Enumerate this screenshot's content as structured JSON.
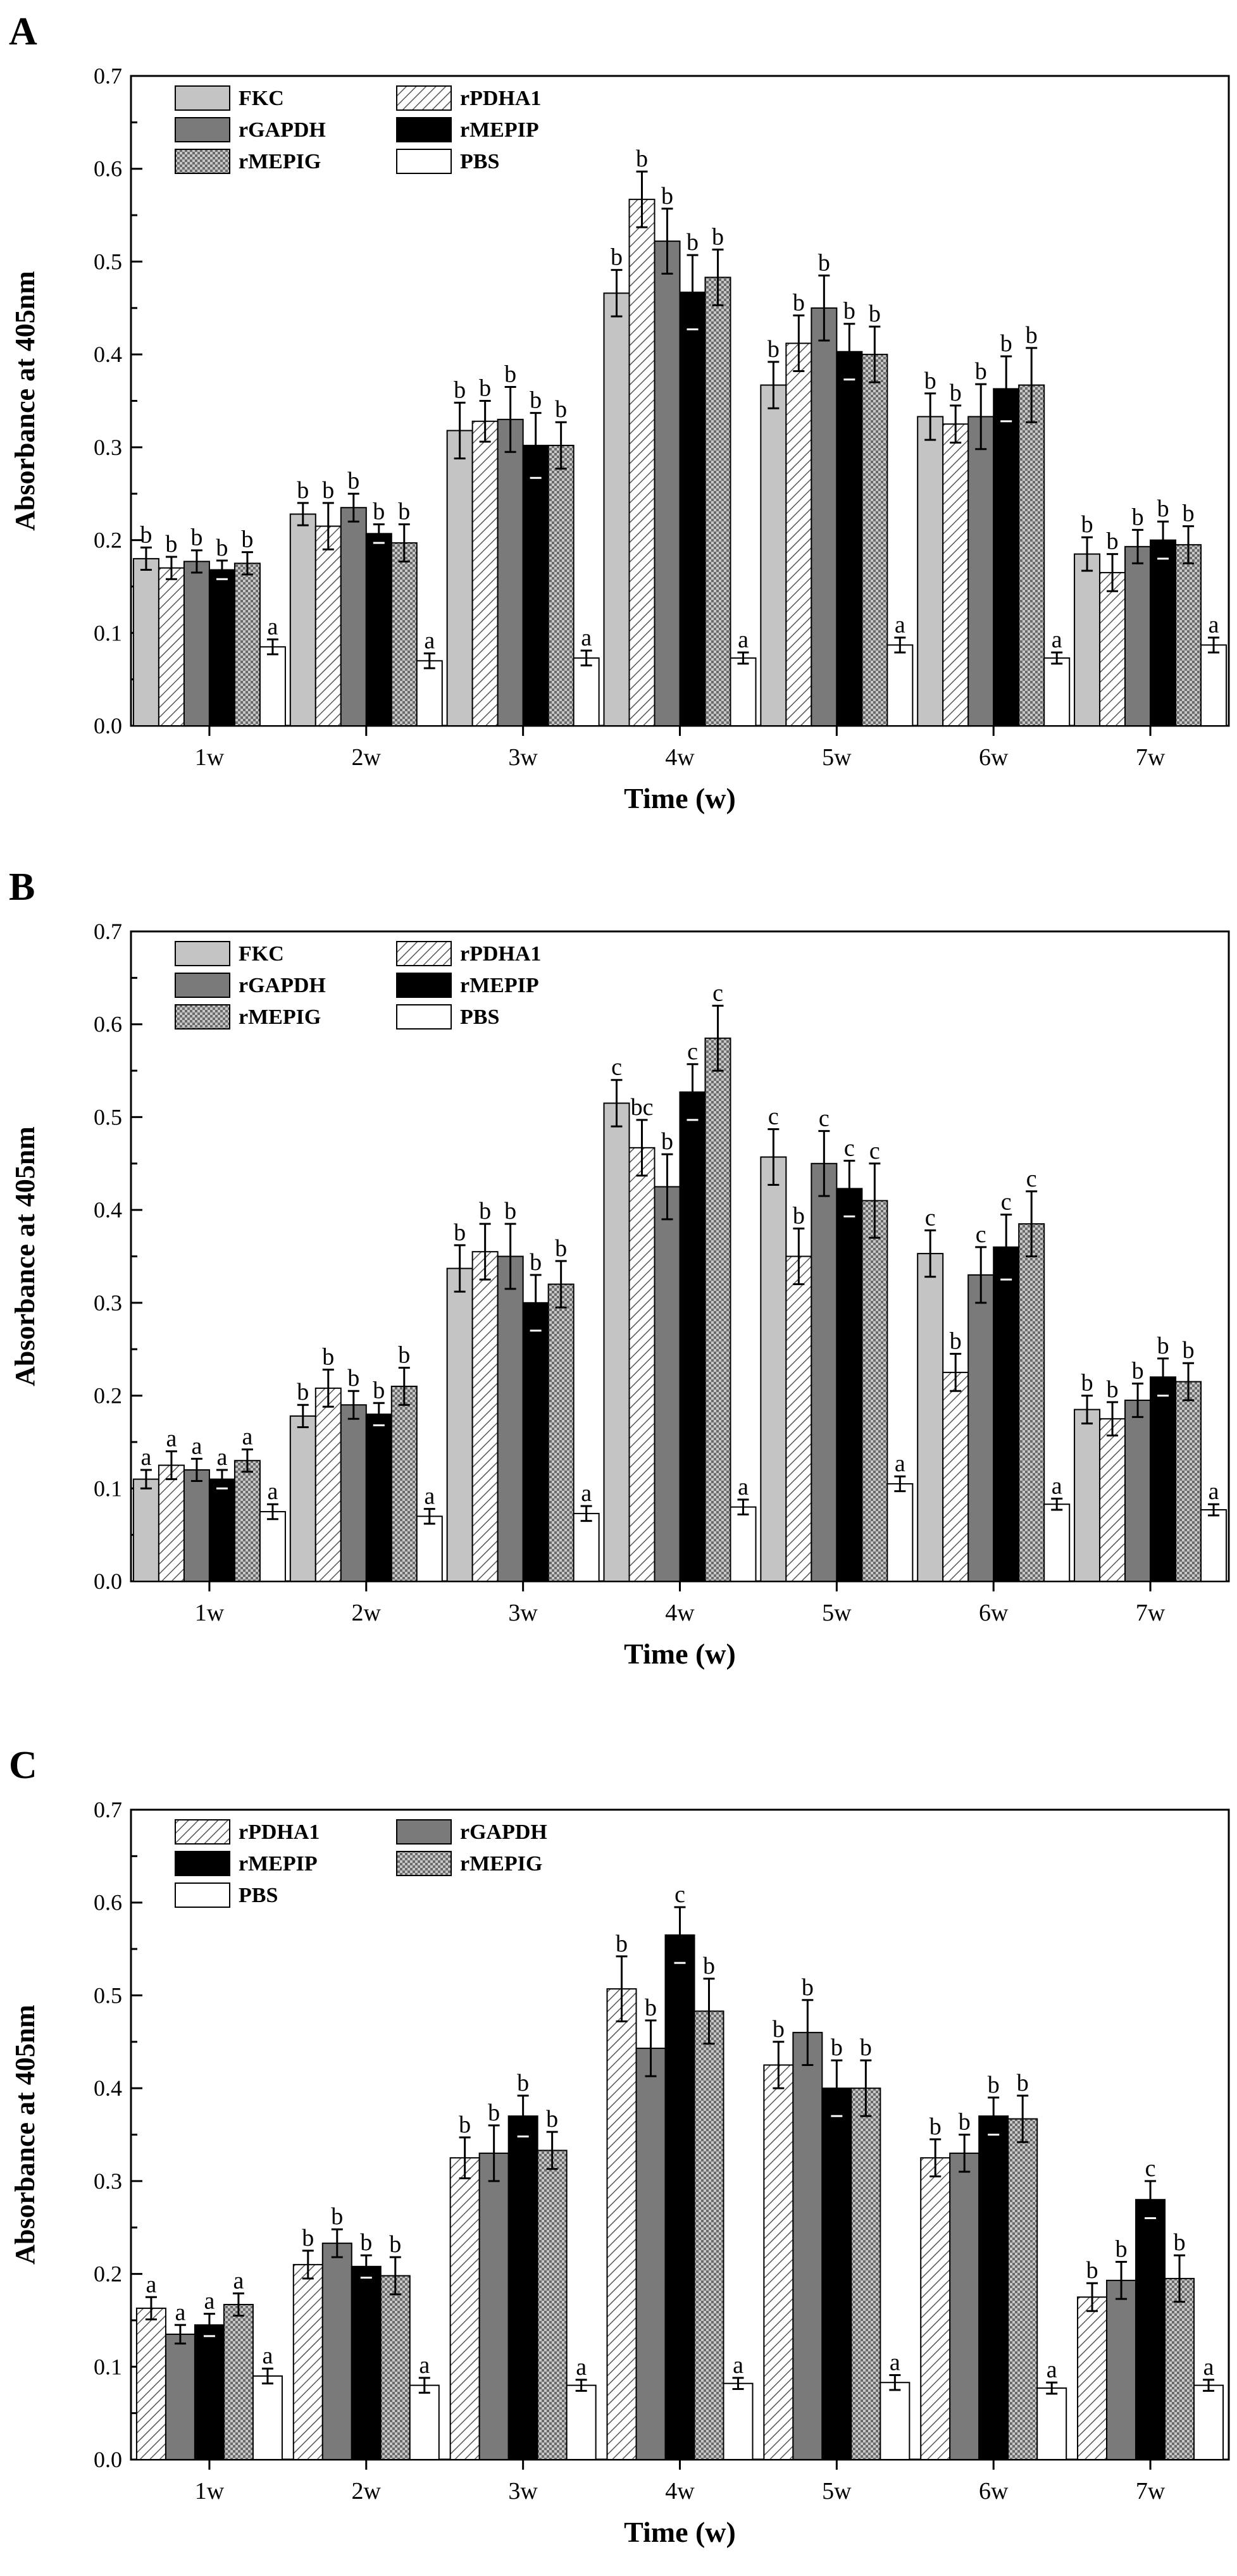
{
  "chart_data": [
    {
      "panel_label": "A",
      "type": "bar",
      "xlabel": "Time (w)",
      "ylabel": "Absorbance at 405nm",
      "ylim": [
        0,
        0.7
      ],
      "yticks": [
        "0.0",
        "0.1",
        "0.2",
        "0.3",
        "0.4",
        "0.5",
        "0.6",
        "0.7"
      ],
      "categories": [
        "1w",
        "2w",
        "3w",
        "4w",
        "5w",
        "6w",
        "7w"
      ],
      "legend_position": "top-left",
      "series": [
        {
          "name": "FKC",
          "pattern": "light",
          "values": [
            0.18,
            0.228,
            0.318,
            0.466,
            0.367,
            0.333,
            0.185
          ],
          "errors": [
            0.012,
            0.012,
            0.03,
            0.025,
            0.025,
            0.025,
            0.018
          ],
          "letters": [
            "b",
            "b",
            "b",
            "b",
            "b",
            "b",
            "b"
          ]
        },
        {
          "name": "rPDHA1",
          "pattern": "hatch",
          "values": [
            0.17,
            0.215,
            0.328,
            0.567,
            0.412,
            0.325,
            0.165
          ],
          "errors": [
            0.012,
            0.025,
            0.022,
            0.03,
            0.03,
            0.02,
            0.02
          ],
          "letters": [
            "b",
            "b",
            "b",
            "b",
            "b",
            "b",
            "b"
          ]
        },
        {
          "name": "rGAPDH",
          "pattern": "dark",
          "values": [
            0.177,
            0.235,
            0.33,
            0.522,
            0.45,
            0.333,
            0.193
          ],
          "errors": [
            0.012,
            0.015,
            0.035,
            0.035,
            0.035,
            0.035,
            0.018
          ],
          "letters": [
            "b",
            "b",
            "b",
            "b",
            "b",
            "b",
            "b"
          ]
        },
        {
          "name": "rMEPIP",
          "pattern": "black",
          "values": [
            0.168,
            0.207,
            0.302,
            0.467,
            0.403,
            0.363,
            0.2
          ],
          "errors": [
            0.01,
            0.01,
            0.035,
            0.04,
            0.03,
            0.035,
            0.02
          ],
          "letters": [
            "b",
            "b",
            "b",
            "b",
            "b",
            "b",
            "b"
          ]
        },
        {
          "name": "rMEPIG",
          "pattern": "checker",
          "values": [
            0.175,
            0.197,
            0.302,
            0.483,
            0.4,
            0.367,
            0.195
          ],
          "errors": [
            0.012,
            0.02,
            0.025,
            0.03,
            0.03,
            0.04,
            0.02
          ],
          "letters": [
            "b",
            "b",
            "b",
            "b",
            "b",
            "b",
            "b"
          ]
        },
        {
          "name": "PBS",
          "pattern": "white",
          "values": [
            0.085,
            0.07,
            0.073,
            0.073,
            0.087,
            0.073,
            0.087
          ],
          "errors": [
            0.008,
            0.008,
            0.008,
            0.006,
            0.008,
            0.006,
            0.008
          ],
          "letters": [
            "a",
            "a",
            "a",
            "a",
            "a",
            "a",
            "a"
          ]
        }
      ]
    },
    {
      "panel_label": "B",
      "type": "bar",
      "xlabel": "Time (w)",
      "ylabel": "Absorbance at 405nm",
      "ylim": [
        0,
        0.7
      ],
      "yticks": [
        "0.0",
        "0.1",
        "0.2",
        "0.3",
        "0.4",
        "0.5",
        "0.6",
        "0.7"
      ],
      "categories": [
        "1w",
        "2w",
        "3w",
        "4w",
        "5w",
        "6w",
        "7w"
      ],
      "legend_position": "top-left",
      "series": [
        {
          "name": "FKC",
          "pattern": "light",
          "values": [
            0.11,
            0.178,
            0.337,
            0.515,
            0.457,
            0.353,
            0.185
          ],
          "errors": [
            0.01,
            0.012,
            0.025,
            0.025,
            0.03,
            0.025,
            0.015
          ],
          "letters": [
            "a",
            "b",
            "b",
            "c",
            "c",
            "c",
            "b"
          ]
        },
        {
          "name": "rPDHA1",
          "pattern": "hatch",
          "values": [
            0.125,
            0.208,
            0.355,
            0.467,
            0.35,
            0.225,
            0.175
          ],
          "errors": [
            0.015,
            0.02,
            0.03,
            0.03,
            0.03,
            0.02,
            0.018
          ],
          "letters": [
            "a",
            "b",
            "b",
            "bc",
            "b",
            "b",
            "b"
          ]
        },
        {
          "name": "rGAPDH",
          "pattern": "dark",
          "values": [
            0.12,
            0.19,
            0.35,
            0.425,
            0.45,
            0.33,
            0.195
          ],
          "errors": [
            0.012,
            0.015,
            0.035,
            0.035,
            0.035,
            0.03,
            0.018
          ],
          "letters": [
            "a",
            "b",
            "b",
            "b",
            "c",
            "c",
            "b"
          ]
        },
        {
          "name": "rMEPIP",
          "pattern": "black",
          "values": [
            0.11,
            0.18,
            0.3,
            0.527,
            0.423,
            0.36,
            0.22
          ],
          "errors": [
            0.01,
            0.012,
            0.03,
            0.03,
            0.03,
            0.035,
            0.02
          ],
          "letters": [
            "a",
            "b",
            "b",
            "c",
            "c",
            "c",
            "b"
          ]
        },
        {
          "name": "rMEPIG",
          "pattern": "checker",
          "values": [
            0.13,
            0.21,
            0.32,
            0.585,
            0.41,
            0.385,
            0.215
          ],
          "errors": [
            0.012,
            0.02,
            0.025,
            0.035,
            0.04,
            0.035,
            0.02
          ],
          "letters": [
            "a",
            "b",
            "b",
            "c",
            "c",
            "c",
            "b"
          ]
        },
        {
          "name": "PBS",
          "pattern": "white",
          "values": [
            0.075,
            0.07,
            0.073,
            0.08,
            0.105,
            0.083,
            0.077
          ],
          "errors": [
            0.008,
            0.008,
            0.008,
            0.008,
            0.008,
            0.006,
            0.006
          ],
          "letters": [
            "a",
            "a",
            "a",
            "a",
            "a",
            "a",
            "a"
          ]
        }
      ]
    },
    {
      "panel_label": "C",
      "type": "bar",
      "xlabel": "Time (w)",
      "ylabel": "Absorbance at 405nm",
      "ylim": [
        0,
        0.7
      ],
      "yticks": [
        "0.0",
        "0.1",
        "0.2",
        "0.3",
        "0.4",
        "0.5",
        "0.6",
        "0.7"
      ],
      "categories": [
        "1w",
        "2w",
        "3w",
        "4w",
        "5w",
        "6w",
        "7w"
      ],
      "legend_position": "top-left",
      "series": [
        {
          "name": "rPDHA1",
          "pattern": "hatch",
          "values": [
            0.163,
            0.21,
            0.325,
            0.507,
            0.425,
            0.325,
            0.175
          ],
          "errors": [
            0.012,
            0.015,
            0.022,
            0.035,
            0.025,
            0.02,
            0.015
          ],
          "letters": [
            "a",
            "b",
            "b",
            "b",
            "b",
            "b",
            "b"
          ]
        },
        {
          "name": "rGAPDH",
          "pattern": "dark",
          "values": [
            0.135,
            0.233,
            0.33,
            0.443,
            0.46,
            0.33,
            0.193
          ],
          "errors": [
            0.01,
            0.015,
            0.03,
            0.03,
            0.035,
            0.02,
            0.02
          ],
          "letters": [
            "a",
            "b",
            "b",
            "b",
            "b",
            "b",
            "b"
          ]
        },
        {
          "name": "rMEPIP",
          "pattern": "black",
          "values": [
            0.145,
            0.208,
            0.37,
            0.565,
            0.4,
            0.37,
            0.28
          ],
          "errors": [
            0.012,
            0.012,
            0.022,
            0.03,
            0.03,
            0.02,
            0.02
          ],
          "letters": [
            "a",
            "b",
            "b",
            "c",
            "b",
            "b",
            "c"
          ]
        },
        {
          "name": "rMEPIG",
          "pattern": "checker",
          "values": [
            0.167,
            0.198,
            0.333,
            0.483,
            0.4,
            0.367,
            0.195
          ],
          "errors": [
            0.012,
            0.02,
            0.02,
            0.035,
            0.03,
            0.025,
            0.025
          ],
          "letters": [
            "a",
            "b",
            "b",
            "b",
            "b",
            "b",
            "b"
          ]
        },
        {
          "name": "PBS",
          "pattern": "white",
          "values": [
            0.09,
            0.08,
            0.08,
            0.082,
            0.083,
            0.077,
            0.08
          ],
          "errors": [
            0.008,
            0.008,
            0.006,
            0.006,
            0.008,
            0.006,
            0.006
          ],
          "letters": [
            "a",
            "a",
            "a",
            "a",
            "a",
            "a",
            "a"
          ]
        }
      ]
    }
  ]
}
